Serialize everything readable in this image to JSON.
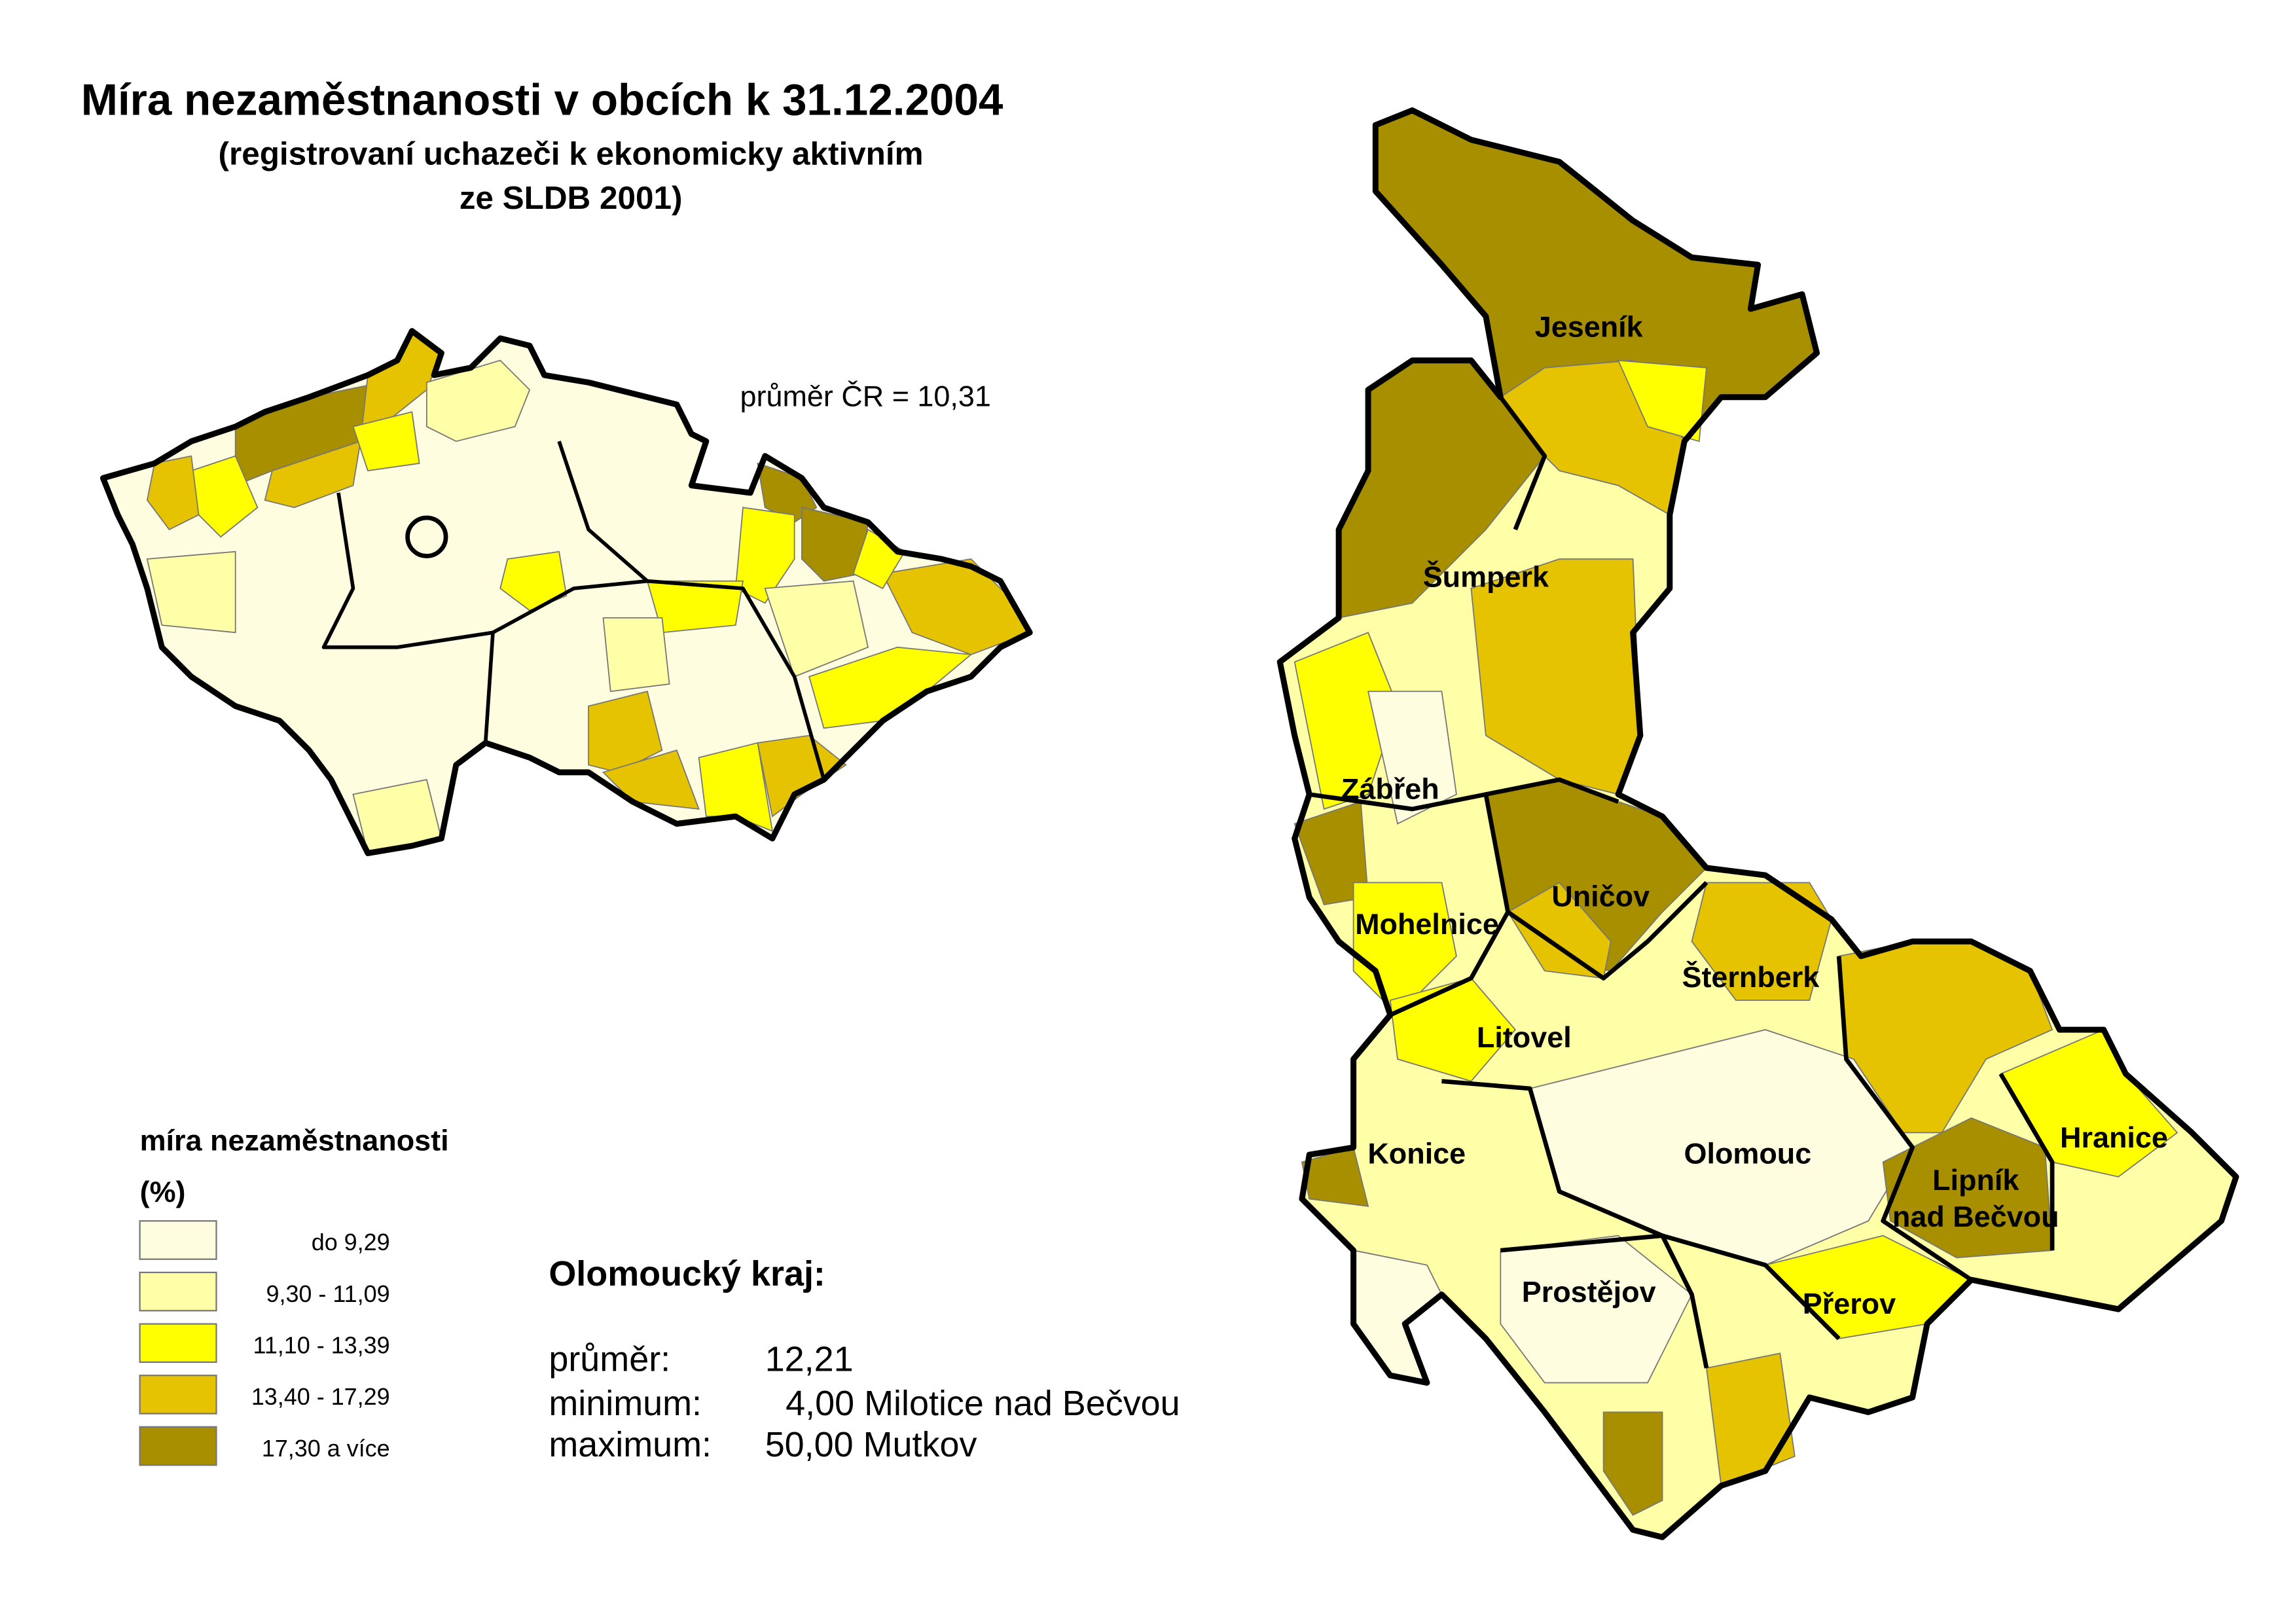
{
  "title": "Míra nezaměstnanosti v obcích k 31.12.2004",
  "subtitle_line1": "(registrovaní uchazeči k ekonomicky aktivním",
  "subtitle_line2": "ze SLDB 2001)",
  "cr_average_label": "průměr ČR = 10,31",
  "legend": {
    "title": "míra nezaměstnanosti",
    "unit": "(%)",
    "classes": [
      {
        "label": "do 9,29",
        "color": "#fffde0"
      },
      {
        "label": "9,30 - 11,09",
        "color": "#ffffa8"
      },
      {
        "label": "11,10 - 13,39",
        "color": "#ffff00"
      },
      {
        "label": "13,40 - 17,29",
        "color": "#e6c300"
      },
      {
        "label": "17,30 a více",
        "color": "#a88f00"
      }
    ]
  },
  "region_stats": {
    "heading": "Olomoucký kraj:",
    "average_label": "průměr:",
    "average_value": "12,21",
    "minimum_label": "minimum:",
    "minimum_value": "4,00 Milotice nad Bečvou",
    "maximum_label": "maximum:",
    "maximum_value": "50,00 Mutkov"
  },
  "district_labels": [
    "Jeseník",
    "Šumperk",
    "Zábřeh",
    "Uničov",
    "Mohelnice",
    "Šternberk",
    "Litovel",
    "Konice",
    "Olomouc",
    "Hranice",
    "Lipník",
    "nad Bečvou",
    "Prostějov",
    "Přerov"
  ]
}
